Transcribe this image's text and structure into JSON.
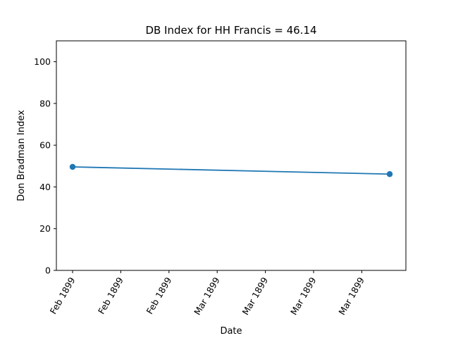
{
  "chart_data": {
    "type": "line",
    "title": "DB Index for HH Francis = 46.14",
    "xlabel": "Date",
    "ylabel": "Don Bradman Index",
    "ylim": [
      0,
      110
    ],
    "yticks": [
      0,
      20,
      40,
      60,
      80,
      100
    ],
    "xticks": [
      "Feb 1899",
      "Feb 1899",
      "Feb 1899",
      "Mar 1899",
      "Mar 1899",
      "Mar 1899",
      "Mar 1899"
    ],
    "grid": false,
    "series": [
      {
        "values": [
          49.6,
          46.14
        ],
        "color": "#1f77b4"
      }
    ]
  }
}
